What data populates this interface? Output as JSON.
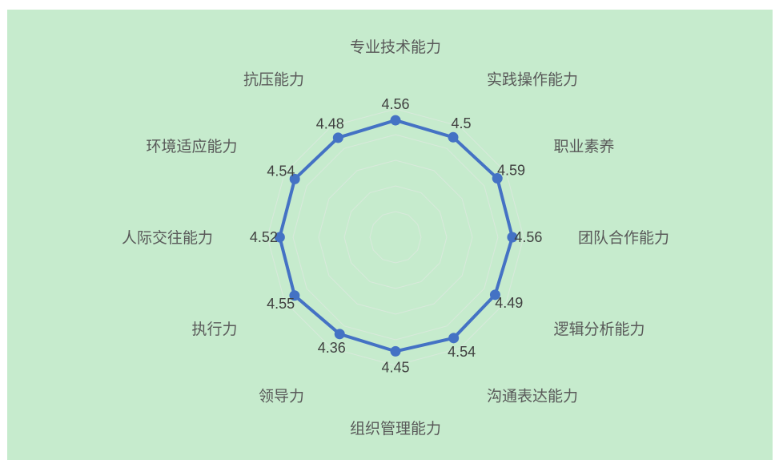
{
  "chart_data": {
    "type": "radar",
    "categories": [
      "专业技术能力",
      "实践操作能力",
      "职业素养",
      "团队合作能力",
      "逻辑分析能力",
      "沟通表达能力",
      "组织管理能力",
      "领导力",
      "执行力",
      "人际交往能力",
      "环境适应能力",
      "抗压能力"
    ],
    "series": [
      {
        "values": [
          4.56,
          4.5,
          4.59,
          4.56,
          4.49,
          4.54,
          4.45,
          4.36,
          4.55,
          4.52,
          4.54,
          4.48
        ],
        "value_labels": [
          "4.56",
          "4.5",
          "4.59",
          "4.56",
          "4.49",
          "4.54",
          "4.45",
          "4.36",
          "4.55",
          "4.52",
          "4.54",
          "4.48"
        ]
      }
    ],
    "rlim": [
      0,
      5
    ],
    "grid": true,
    "colors": {
      "background": "#c6ebcd",
      "line": "#4472c4",
      "grid": "#d9e9dc"
    }
  }
}
